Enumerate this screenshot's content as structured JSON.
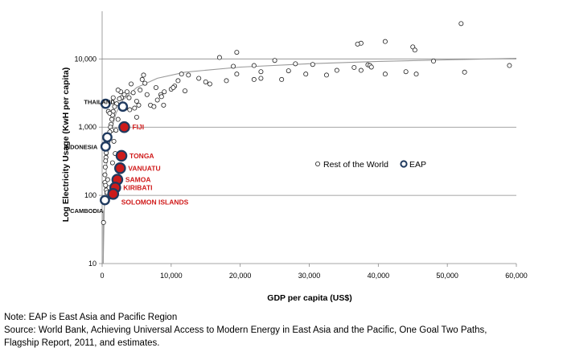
{
  "chart_data": {
    "type": "scatter",
    "y_scale": "log",
    "xlabel": "GDP per capita (US$)",
    "ylabel": "Log Electricity Usage (KwH per capita)",
    "xlim": [
      0,
      60000
    ],
    "ylim": [
      10,
      50000
    ],
    "x_ticks": [
      "0",
      "10,000",
      "20,000",
      "30,000",
      "40,000",
      "50,000",
      "60,000"
    ],
    "y_ticks": [
      "10",
      "100",
      "1,000",
      "10,000"
    ],
    "legend": {
      "rest_label": "Rest of the World",
      "eap_label": "EAP",
      "placement": "right-middle"
    },
    "colors": {
      "rest": "#ffffff",
      "eap": "#1f3a5f",
      "highlight": "#cc1b1b",
      "trend": "#999999"
    },
    "trend_line": {
      "x": [
        150,
        300,
        500,
        800,
        1200,
        2000,
        3000,
        5000,
        8000,
        12000,
        20000,
        30000,
        40000,
        50000,
        60000
      ],
      "y": [
        10,
        60,
        180,
        420,
        800,
        1600,
        2500,
        3800,
        5200,
        6400,
        7600,
        8500,
        9200,
        9700,
        10200
      ]
    },
    "series": [
      {
        "name": "Rest of the World",
        "points": [
          [
            52000,
            33000
          ],
          [
            41000,
            18000
          ],
          [
            37500,
            17000
          ],
          [
            37000,
            16500
          ],
          [
            45000,
            15000
          ],
          [
            45300,
            13500
          ],
          [
            19500,
            12500
          ],
          [
            17000,
            10500
          ],
          [
            25000,
            9500
          ],
          [
            48000,
            9300
          ],
          [
            28000,
            8500
          ],
          [
            30500,
            8300
          ],
          [
            38500,
            8200
          ],
          [
            38800,
            8000
          ],
          [
            39000,
            7600
          ],
          [
            22000,
            8000
          ],
          [
            19000,
            7800
          ],
          [
            36500,
            7500
          ],
          [
            37500,
            6800
          ],
          [
            34000,
            6800
          ],
          [
            27000,
            6700
          ],
          [
            23000,
            6500
          ],
          [
            44000,
            6500
          ],
          [
            52500,
            6400
          ],
          [
            41000,
            6000
          ],
          [
            45500,
            6000
          ],
          [
            29500,
            6000
          ],
          [
            32500,
            5800
          ],
          [
            11500,
            6000
          ],
          [
            12500,
            5800
          ],
          [
            19500,
            6000
          ],
          [
            22000,
            5000
          ],
          [
            18000,
            4800
          ],
          [
            15000,
            4600
          ],
          [
            23000,
            5200
          ],
          [
            11000,
            4800
          ],
          [
            26000,
            5000
          ],
          [
            59000,
            8000
          ],
          [
            10500,
            4000
          ],
          [
            10000,
            3600
          ],
          [
            12000,
            3400
          ],
          [
            9000,
            3300
          ],
          [
            8500,
            3000
          ],
          [
            7800,
            3800
          ],
          [
            8000,
            2500
          ],
          [
            8600,
            2800
          ],
          [
            6000,
            5800
          ],
          [
            5800,
            5000
          ],
          [
            6200,
            4400
          ],
          [
            4200,
            4300
          ],
          [
            3600,
            3300
          ],
          [
            3200,
            3000
          ],
          [
            2800,
            2700
          ],
          [
            2700,
            3300
          ],
          [
            2300,
            3500
          ],
          [
            2500,
            2600
          ],
          [
            3900,
            2700
          ],
          [
            4500,
            3200
          ],
          [
            5000,
            2400
          ],
          [
            5300,
            2100
          ],
          [
            4700,
            1900
          ],
          [
            5500,
            3500
          ],
          [
            2100,
            2200
          ],
          [
            1800,
            2000
          ],
          [
            1600,
            1700
          ],
          [
            1500,
            1500
          ],
          [
            1400,
            1300
          ],
          [
            1300,
            1100
          ],
          [
            1200,
            1000
          ],
          [
            1400,
            900
          ],
          [
            1100,
            850
          ],
          [
            1000,
            760
          ],
          [
            900,
            680
          ],
          [
            800,
            600
          ],
          [
            700,
            540
          ],
          [
            650,
            480
          ],
          [
            600,
            420
          ],
          [
            550,
            360
          ],
          [
            500,
            320
          ],
          [
            450,
            260
          ],
          [
            400,
            200
          ],
          [
            400,
            155
          ],
          [
            500,
            140
          ],
          [
            600,
            120
          ],
          [
            700,
            110
          ],
          [
            350,
            90
          ],
          [
            300,
            80
          ],
          [
            200,
            40
          ],
          [
            800,
            170
          ],
          [
            1000,
            130
          ],
          [
            1200,
            95
          ],
          [
            1500,
            300
          ],
          [
            1700,
            620
          ],
          [
            1900,
            410
          ],
          [
            2000,
            900
          ],
          [
            2300,
            1300
          ],
          [
            900,
            1700
          ],
          [
            1100,
            1600
          ],
          [
            1600,
            2700
          ],
          [
            7000,
            2100
          ],
          [
            5000,
            1400
          ],
          [
            7500,
            2000
          ],
          [
            8900,
            2100
          ],
          [
            4000,
            1800
          ],
          [
            3400,
            1900
          ],
          [
            6500,
            3000
          ],
          [
            15600,
            4300
          ],
          [
            14000,
            5200
          ],
          [
            10300,
            3800
          ]
        ]
      },
      {
        "name": "EAP",
        "points": [
          [
            3000,
            2000
          ],
          [
            3200,
            1000
          ],
          [
            2800,
            380
          ],
          [
            2600,
            250
          ],
          [
            2200,
            170
          ],
          [
            1900,
            130
          ],
          [
            1600,
            105
          ],
          [
            500,
            520
          ],
          [
            400,
            85
          ],
          [
            750,
            710
          ],
          [
            500,
            2200
          ]
        ],
        "red_points": [
          [
            3200,
            1000
          ],
          [
            2800,
            380
          ],
          [
            2600,
            250
          ],
          [
            2200,
            170
          ],
          [
            1900,
            130
          ],
          [
            1600,
            105
          ]
        ]
      }
    ],
    "annotations": [
      {
        "text": "THAILAND",
        "x": 3000,
        "y": 2000,
        "style": "dark",
        "side": "left"
      },
      {
        "text": "FIJI",
        "x": 3200,
        "y": 1000,
        "style": "red",
        "side": "right"
      },
      {
        "text": "INDONESIA",
        "x": 500,
        "y": 520,
        "style": "dark",
        "side": "left"
      },
      {
        "text": "TONGA",
        "x": 2800,
        "y": 380,
        "style": "red",
        "side": "right"
      },
      {
        "text": "VANUATU",
        "x": 2600,
        "y": 250,
        "style": "red",
        "side": "right"
      },
      {
        "text": "SAMOA",
        "x": 2200,
        "y": 170,
        "style": "red",
        "side": "right"
      },
      {
        "text": "KIRIBATI",
        "x": 1900,
        "y": 130,
        "style": "red",
        "side": "right"
      },
      {
        "text": "SOLOMON ISLANDS",
        "x": 1600,
        "y": 105,
        "style": "red",
        "side": "right-below"
      },
      {
        "text": "CAMBODIA",
        "x": 400,
        "y": 85,
        "style": "dark",
        "side": "left-below"
      }
    ]
  },
  "notes": {
    "line1": "Note: EAP is East Asia and Pacific Region",
    "line2": " Source: World Bank, Achieving Universal Access to Modern Energy in East Asia and the Pacific, One Goal Two Paths,",
    "line3": "Flagship Report, 2011, and estimates."
  }
}
